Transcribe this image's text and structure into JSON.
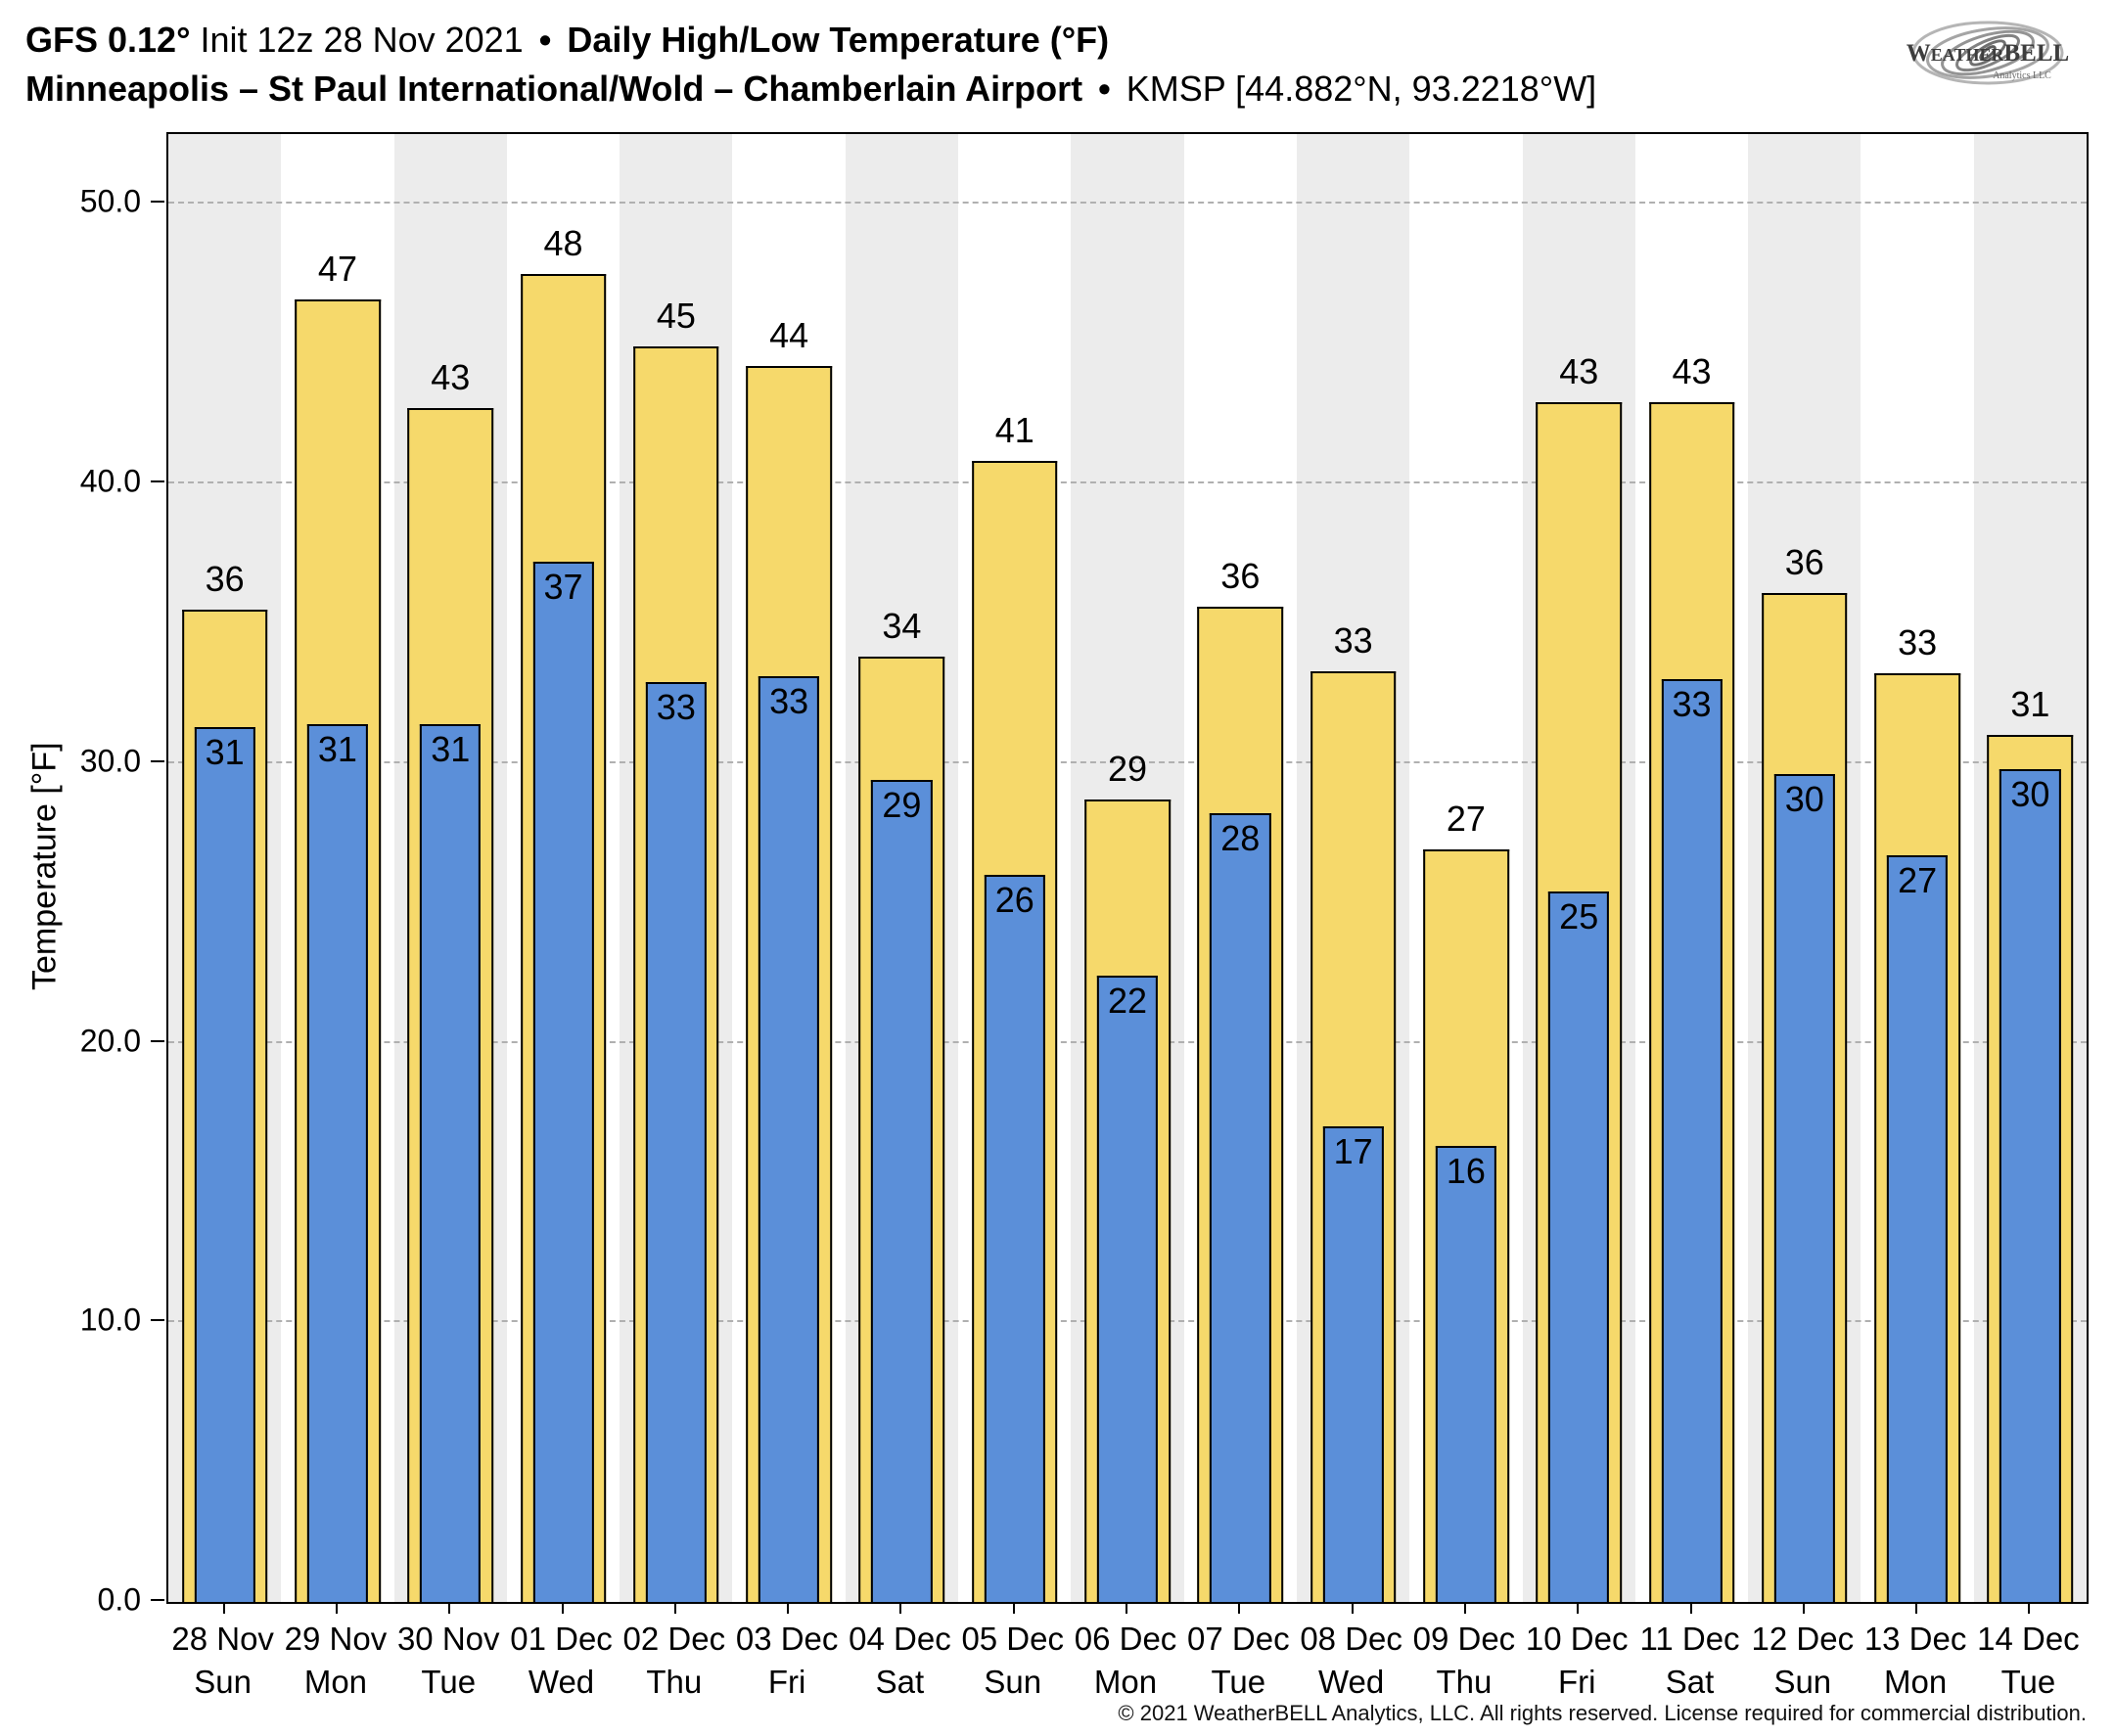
{
  "header": {
    "title_model": "GFS 0.12°",
    "title_init": "Init 12z 28 Nov 2021",
    "title_sep": "•",
    "title_metric": "Daily High/Low Temperature (°F)",
    "station_name": "Minneapolis – St Paul International/Wold – Chamberlain Airport",
    "station_sep": "•",
    "station_id": "KMSP [44.882°N, 93.2218°W]",
    "logo_text": "WeatherBELL",
    "logo_sub": "Analytics LLC"
  },
  "chart_data": {
    "type": "bar",
    "title": "GFS 0.12° Init 12z 28 Nov 2021 • Daily High/Low Temperature (°F) — Minneapolis – St Paul International/Wold – Chamberlain Airport • KMSP [44.882°N, 93.2218°W]",
    "xlabel": "",
    "ylabel": "Temperature [°F]",
    "ylim": [
      0,
      52.5
    ],
    "grid": "horizontal-dashed",
    "legend": "none",
    "yticks": [
      0,
      10,
      20,
      30,
      40,
      50
    ],
    "ytick_labels": [
      "0.0",
      "10.0",
      "20.0",
      "30.0",
      "40.0",
      "50.0"
    ],
    "categories": [
      "28 Nov",
      "29 Nov",
      "30 Nov",
      "01 Dec",
      "02 Dec",
      "03 Dec",
      "04 Dec",
      "05 Dec",
      "06 Dec",
      "07 Dec",
      "08 Dec",
      "09 Dec",
      "10 Dec",
      "11 Dec",
      "12 Dec",
      "13 Dec",
      "14 Dec"
    ],
    "days": [
      "Sun",
      "Mon",
      "Tue",
      "Wed",
      "Thu",
      "Fri",
      "Sat",
      "Sun",
      "Mon",
      "Tue",
      "Wed",
      "Thu",
      "Fri",
      "Sat",
      "Sun",
      "Mon",
      "Tue"
    ],
    "series": [
      {
        "name": "High",
        "color": "#F6D96B",
        "values": [
          36,
          47,
          43,
          48,
          45,
          44,
          34,
          41,
          29,
          36,
          33,
          27,
          43,
          43,
          36,
          33,
          31
        ],
        "bar_heights": [
          35.5,
          46.6,
          42.7,
          47.5,
          44.9,
          44.2,
          33.8,
          40.8,
          28.7,
          35.6,
          33.3,
          26.9,
          42.9,
          42.9,
          36.1,
          33.2,
          31.0
        ]
      },
      {
        "name": "Low",
        "color": "#5B8FD9",
        "values": [
          31,
          31,
          31,
          37,
          33,
          33,
          29,
          26,
          22,
          28,
          17,
          16,
          25,
          33,
          30,
          27,
          30
        ],
        "bar_heights": [
          31.3,
          31.4,
          31.4,
          37.2,
          32.9,
          33.1,
          29.4,
          26.0,
          22.4,
          28.2,
          17.0,
          16.3,
          25.4,
          33.0,
          29.6,
          26.7,
          29.8
        ]
      }
    ]
  },
  "footer": {
    "copyright": "© 2021 WeatherBELL Analytics, LLC. All rights reserved. License required for commercial distribution."
  }
}
